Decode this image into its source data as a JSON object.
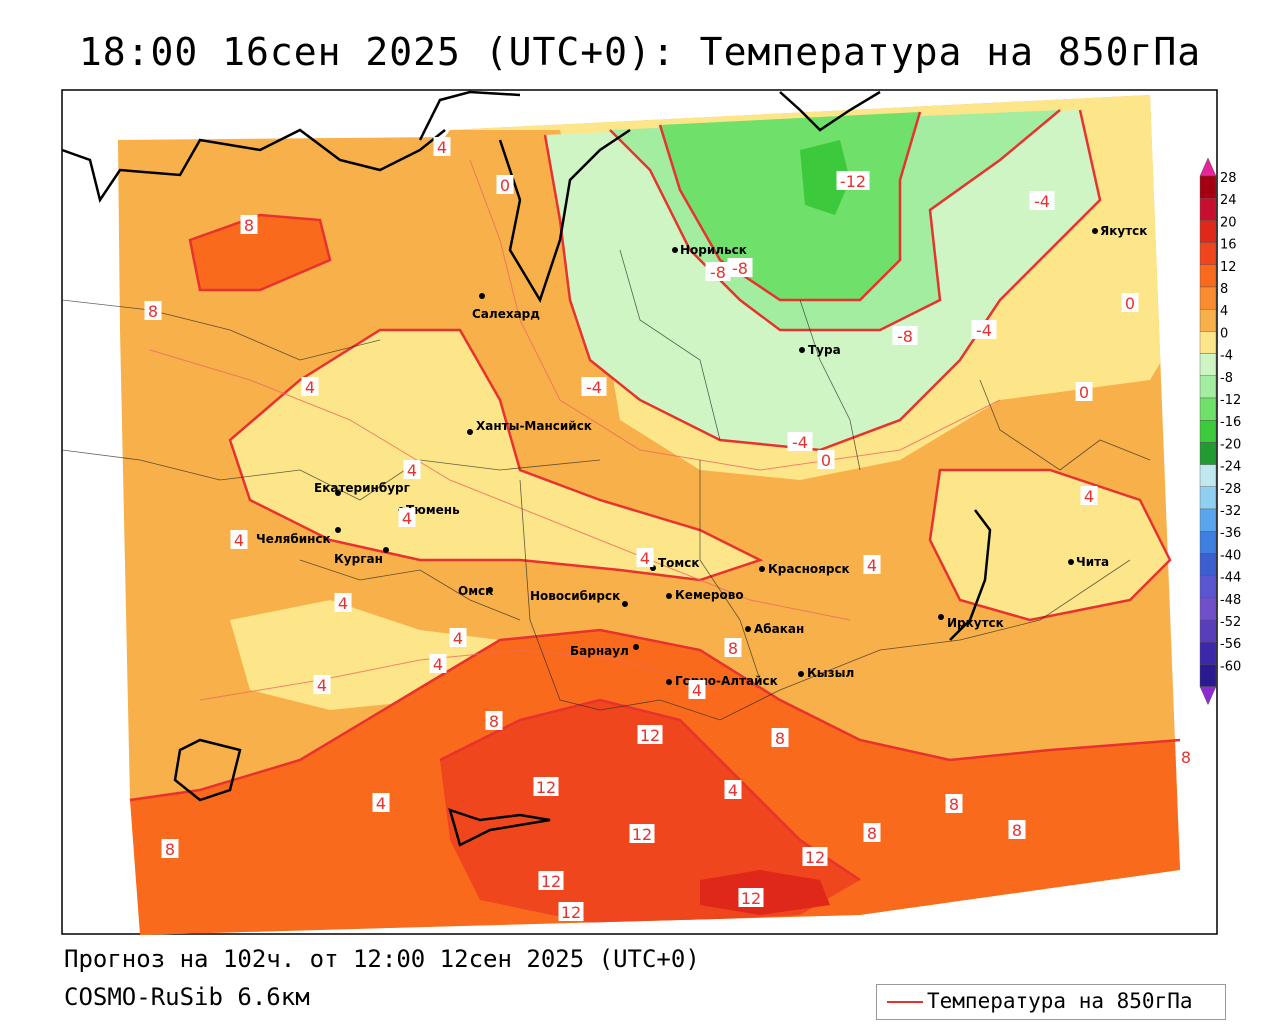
{
  "header": {
    "title": "18:00 16сен 2025 (UTC+0): Температура на 850гПа"
  },
  "footer": {
    "forecast": "Прогноз на 102ч. от 12:00 12сен 2025 (UTC+0)",
    "model": "COSMO-RuSib 6.6км"
  },
  "legend": {
    "label": "Температура на 850гПа",
    "line_color": "#e8322f"
  },
  "colorbar": {
    "labels": [
      "28",
      "24",
      "20",
      "16",
      "12",
      "8",
      "4",
      "0",
      "-4",
      "-8",
      "-12",
      "-16",
      "-20",
      "-24",
      "-28",
      "-32",
      "-36",
      "-40",
      "-44",
      "-48",
      "-52",
      "-56",
      "-60"
    ],
    "colors": [
      "#a50012",
      "#c8102e",
      "#e0281a",
      "#f0461e",
      "#f96a1c",
      "#f98c2e",
      "#f7b04a",
      "#fde58a",
      "#cff5c4",
      "#a3eda0",
      "#6fe06a",
      "#3cc93c",
      "#229c32",
      "#bfe9ef",
      "#8fd0f0",
      "#5aa6ee",
      "#3e7fe0",
      "#3c5fd0",
      "#5a56cf",
      "#6f50c9",
      "#5a3dba",
      "#3a28a8",
      "#2a1a90"
    ],
    "top_arrow_color": "#e6259a",
    "bottom_arrow_color": "#8c2bd0"
  },
  "cities": [
    {
      "name": "Норильск"
    },
    {
      "name": "Якутск"
    },
    {
      "name": "Салехард"
    },
    {
      "name": "Тура"
    },
    {
      "name": "Ханты-Мансийск"
    },
    {
      "name": "Екатеринбург"
    },
    {
      "name": "Тюмень"
    },
    {
      "name": "Челябинск"
    },
    {
      "name": "Курган"
    },
    {
      "name": "Омск"
    },
    {
      "name": "Новосибирск"
    },
    {
      "name": "Томск"
    },
    {
      "name": "Кемерово"
    },
    {
      "name": "Красноярск"
    },
    {
      "name": "Абакан"
    },
    {
      "name": "Барнаул"
    },
    {
      "name": "Горно-Алтайск"
    },
    {
      "name": "Кызыл"
    },
    {
      "name": "Иркутск"
    },
    {
      "name": "Чита"
    }
  ],
  "isotherm_labels": [
    "-12",
    "-8",
    "-8",
    "-8",
    "-4",
    "-4",
    "-4",
    "-4",
    "0",
    "0",
    "0",
    "0",
    "4",
    "4",
    "4",
    "4",
    "4",
    "4",
    "4",
    "4",
    "4",
    "4",
    "4",
    "4",
    "4",
    "4",
    "4",
    "8",
    "8",
    "8",
    "8",
    "8",
    "8",
    "8",
    "8",
    "8",
    "8",
    "12",
    "12",
    "12",
    "12",
    "12",
    "12",
    "12"
  ]
}
